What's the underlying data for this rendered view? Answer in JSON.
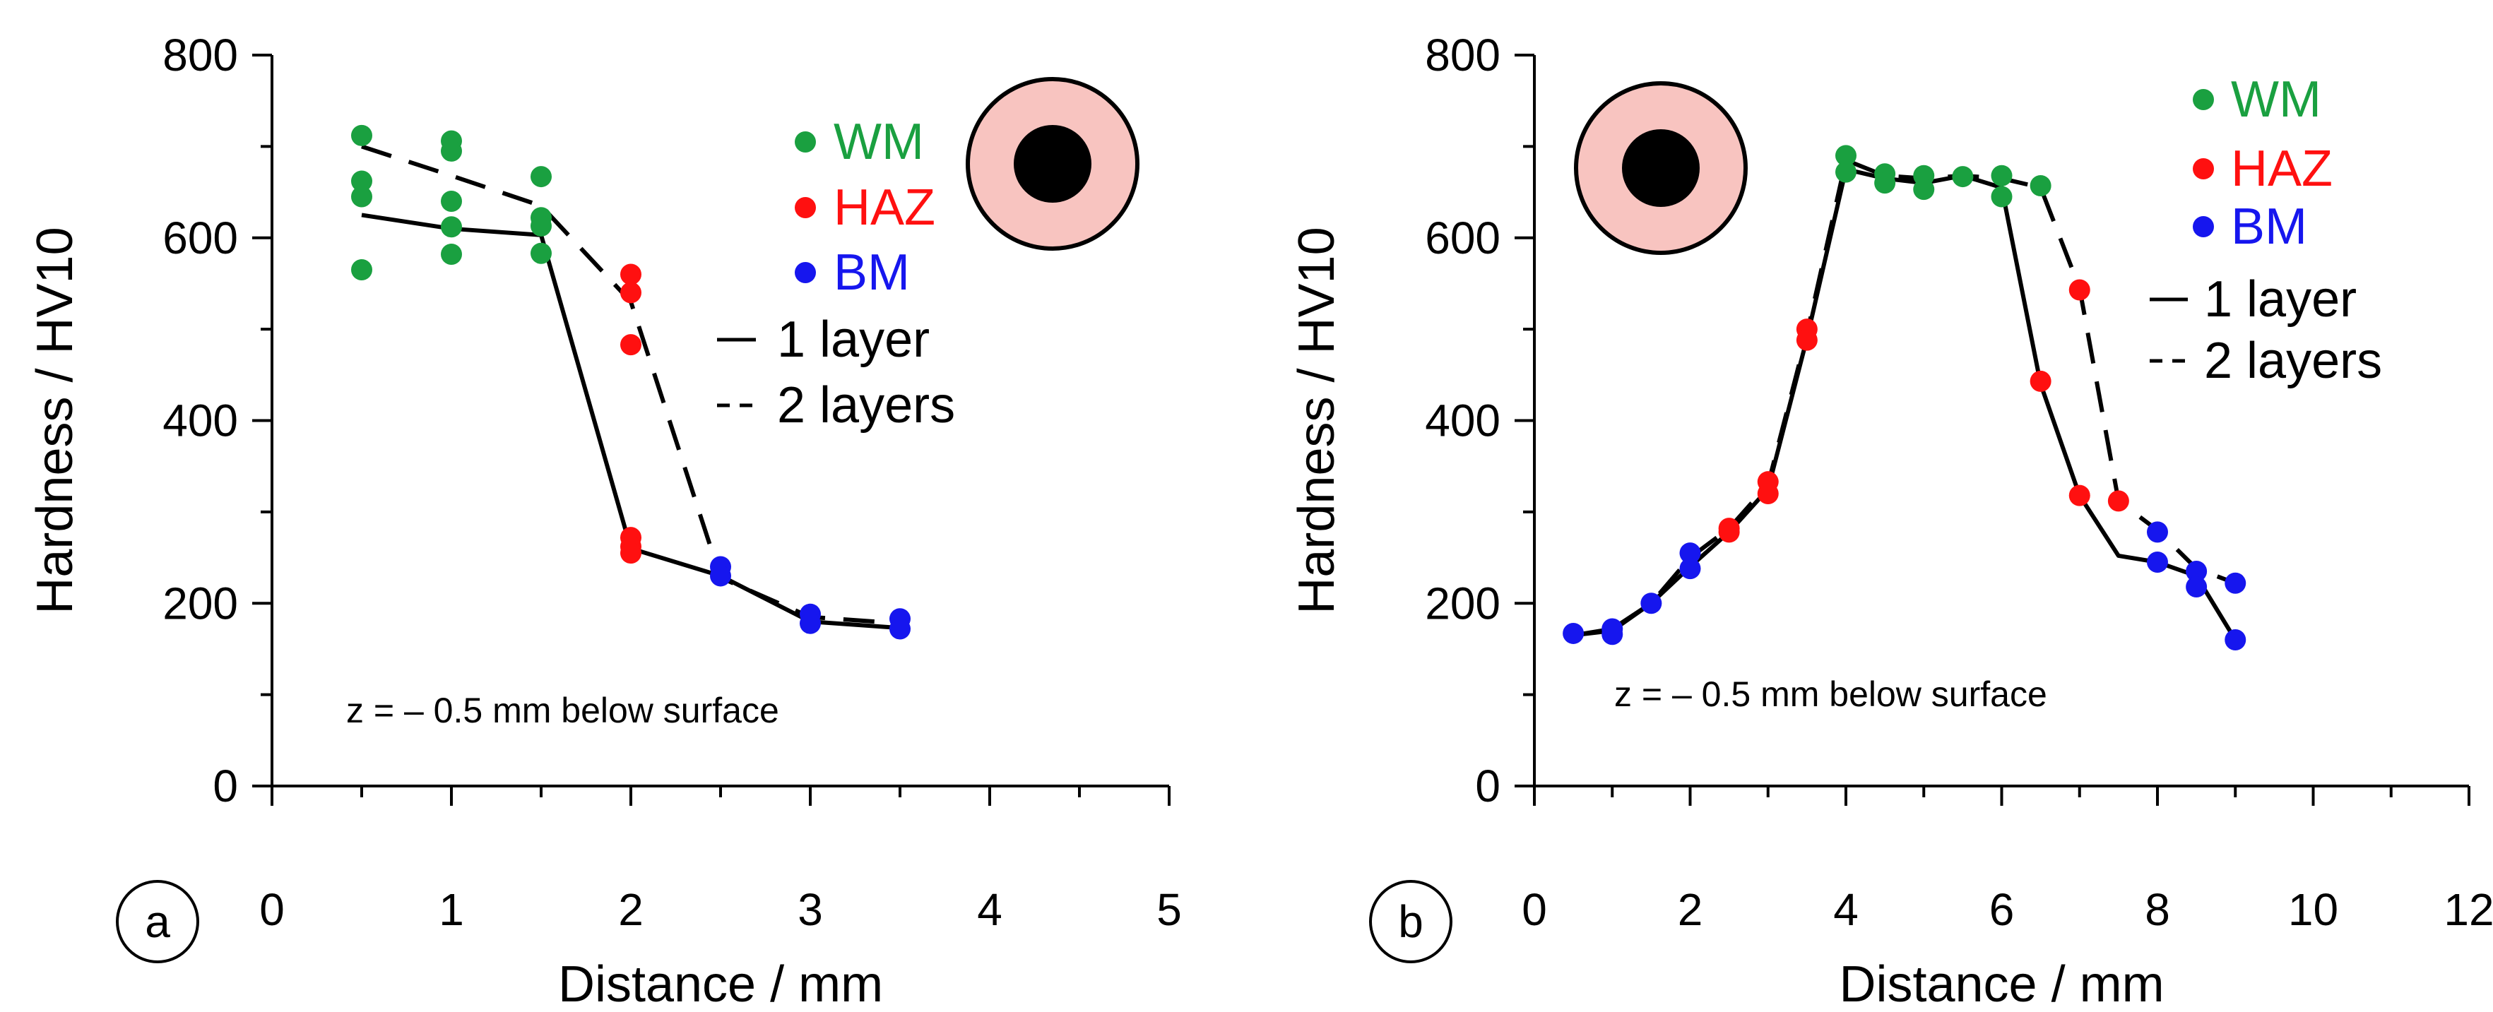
{
  "colors": {
    "WM": "#1aa040",
    "HAZ": "#ff1010",
    "BM": "#1616ee",
    "line": "#000000",
    "disk_ring": "#f8c4c0"
  },
  "chart_data": [
    {
      "type": "scatter",
      "panel_label": "a",
      "xlabel": "Distance / mm",
      "ylabel": "Hardness / HV10",
      "xlim": [
        0,
        5
      ],
      "ylim": [
        0,
        800
      ],
      "xticks": [
        0,
        1,
        2,
        3,
        4,
        5
      ],
      "yticks": [
        0,
        200,
        400,
        600,
        800
      ],
      "annotation": "z = – 0.5 mm below surface",
      "legend": {
        "position": "top-right",
        "markers": [
          {
            "key": "WM",
            "label": "WM"
          },
          {
            "key": "HAZ",
            "label": "HAZ"
          },
          {
            "key": "BM",
            "label": "BM"
          }
        ],
        "lines": [
          {
            "style": "solid",
            "label": "1 layer"
          },
          {
            "style": "dashed",
            "label": "2 layers"
          }
        ]
      },
      "inset_icon": "weld-cross-section-icon",
      "points": [
        {
          "zone": "WM",
          "x": 0.5,
          "y": 712
        },
        {
          "zone": "WM",
          "x": 0.5,
          "y": 662
        },
        {
          "zone": "WM",
          "x": 0.5,
          "y": 645
        },
        {
          "zone": "WM",
          "x": 0.5,
          "y": 565
        },
        {
          "zone": "WM",
          "x": 1.0,
          "y": 706
        },
        {
          "zone": "WM",
          "x": 1.0,
          "y": 695
        },
        {
          "zone": "WM",
          "x": 1.0,
          "y": 640
        },
        {
          "zone": "WM",
          "x": 1.0,
          "y": 612
        },
        {
          "zone": "WM",
          "x": 1.0,
          "y": 582
        },
        {
          "zone": "WM",
          "x": 1.5,
          "y": 667
        },
        {
          "zone": "WM",
          "x": 1.5,
          "y": 622
        },
        {
          "zone": "WM",
          "x": 1.5,
          "y": 613
        },
        {
          "zone": "WM",
          "x": 1.5,
          "y": 583
        },
        {
          "zone": "HAZ",
          "x": 2.0,
          "y": 560
        },
        {
          "zone": "HAZ",
          "x": 2.0,
          "y": 540
        },
        {
          "zone": "HAZ",
          "x": 2.0,
          "y": 483
        },
        {
          "zone": "HAZ",
          "x": 2.0,
          "y": 272
        },
        {
          "zone": "HAZ",
          "x": 2.0,
          "y": 262
        },
        {
          "zone": "HAZ",
          "x": 2.0,
          "y": 255
        },
        {
          "zone": "BM",
          "x": 2.5,
          "y": 240
        },
        {
          "zone": "BM",
          "x": 2.5,
          "y": 230
        },
        {
          "zone": "BM",
          "x": 3.0,
          "y": 188
        },
        {
          "zone": "BM",
          "x": 3.0,
          "y": 178
        },
        {
          "zone": "BM",
          "x": 3.5,
          "y": 183
        },
        {
          "zone": "BM",
          "x": 3.5,
          "y": 172
        }
      ],
      "series": [
        {
          "name": "1 layer",
          "style": "solid",
          "x": [
            0.5,
            1.0,
            1.5,
            2.0,
            2.5,
            3.0,
            3.5
          ],
          "y": [
            625,
            610,
            603,
            260,
            230,
            180,
            173
          ]
        },
        {
          "name": "2 layers",
          "style": "dashed",
          "x": [
            0.5,
            1.0,
            1.5,
            2.0,
            2.5,
            3.0,
            3.5
          ],
          "y": [
            700,
            668,
            635,
            530,
            228,
            185,
            178
          ]
        }
      ]
    },
    {
      "type": "scatter",
      "panel_label": "b",
      "xlabel": "Distance / mm",
      "ylabel": "Hardness / HV10",
      "xlim": [
        0,
        12
      ],
      "ylim": [
        0,
        800
      ],
      "xticks": [
        0,
        2,
        4,
        6,
        8,
        10,
        12
      ],
      "yticks": [
        0,
        200,
        400,
        600,
        800
      ],
      "annotation": "z = – 0.5 mm below surface",
      "legend": {
        "position": "top-right",
        "markers": [
          {
            "key": "WM",
            "label": "WM"
          },
          {
            "key": "HAZ",
            "label": "HAZ"
          },
          {
            "key": "BM",
            "label": "BM"
          }
        ],
        "lines": [
          {
            "style": "solid",
            "label": "1 layer"
          },
          {
            "style": "dashed",
            "label": "2 layers"
          }
        ]
      },
      "inset_icon": "weld-cross-section-icon",
      "points": [
        {
          "zone": "BM",
          "x": 0.5,
          "y": 167
        },
        {
          "zone": "BM",
          "x": 1.0,
          "y": 172
        },
        {
          "zone": "BM",
          "x": 1.0,
          "y": 166
        },
        {
          "zone": "BM",
          "x": 1.5,
          "y": 200
        },
        {
          "zone": "BM",
          "x": 2.0,
          "y": 255
        },
        {
          "zone": "BM",
          "x": 2.0,
          "y": 238
        },
        {
          "zone": "HAZ",
          "x": 2.5,
          "y": 282
        },
        {
          "zone": "HAZ",
          "x": 2.5,
          "y": 278
        },
        {
          "zone": "HAZ",
          "x": 3.0,
          "y": 333
        },
        {
          "zone": "HAZ",
          "x": 3.0,
          "y": 320
        },
        {
          "zone": "HAZ",
          "x": 3.5,
          "y": 500
        },
        {
          "zone": "HAZ",
          "x": 3.5,
          "y": 488
        },
        {
          "zone": "WM",
          "x": 4.0,
          "y": 690
        },
        {
          "zone": "WM",
          "x": 4.0,
          "y": 672
        },
        {
          "zone": "WM",
          "x": 4.5,
          "y": 670
        },
        {
          "zone": "WM",
          "x": 4.5,
          "y": 660
        },
        {
          "zone": "WM",
          "x": 5.0,
          "y": 668
        },
        {
          "zone": "WM",
          "x": 5.0,
          "y": 653
        },
        {
          "zone": "WM",
          "x": 5.5,
          "y": 667
        },
        {
          "zone": "WM",
          "x": 6.0,
          "y": 668
        },
        {
          "zone": "WM",
          "x": 6.0,
          "y": 645
        },
        {
          "zone": "WM",
          "x": 6.5,
          "y": 657
        },
        {
          "zone": "HAZ",
          "x": 6.5,
          "y": 443
        },
        {
          "zone": "HAZ",
          "x": 7.0,
          "y": 543
        },
        {
          "zone": "HAZ",
          "x": 7.0,
          "y": 318
        },
        {
          "zone": "HAZ",
          "x": 7.5,
          "y": 312
        },
        {
          "zone": "BM",
          "x": 8.0,
          "y": 278
        },
        {
          "zone": "BM",
          "x": 8.0,
          "y": 245
        },
        {
          "zone": "BM",
          "x": 8.5,
          "y": 235
        },
        {
          "zone": "BM",
          "x": 8.5,
          "y": 218
        },
        {
          "zone": "BM",
          "x": 9.0,
          "y": 222
        },
        {
          "zone": "BM",
          "x": 9.0,
          "y": 160
        }
      ],
      "series": [
        {
          "name": "1 layer",
          "style": "solid",
          "x": [
            0.5,
            1.0,
            1.5,
            2.0,
            2.5,
            3.0,
            3.5,
            4.0,
            4.5,
            5.0,
            5.5,
            6.0,
            6.5,
            7.0,
            7.5,
            8.0,
            8.5,
            9.0
          ],
          "y": [
            165,
            170,
            200,
            240,
            278,
            325,
            490,
            675,
            665,
            660,
            668,
            655,
            440,
            318,
            252,
            245,
            230,
            160
          ]
        },
        {
          "name": "2 layers",
          "style": "dashed",
          "x": [
            0.5,
            1.0,
            1.5,
            2.0,
            2.5,
            3.0,
            3.5,
            4.0,
            4.5,
            5.0,
            5.5,
            6.0,
            6.5,
            7.0,
            7.5,
            8.0,
            8.5,
            9.0
          ],
          "y": [
            165,
            172,
            200,
            250,
            282,
            330,
            495,
            685,
            668,
            665,
            668,
            665,
            655,
            545,
            312,
            280,
            238,
            222
          ]
        }
      ]
    }
  ]
}
